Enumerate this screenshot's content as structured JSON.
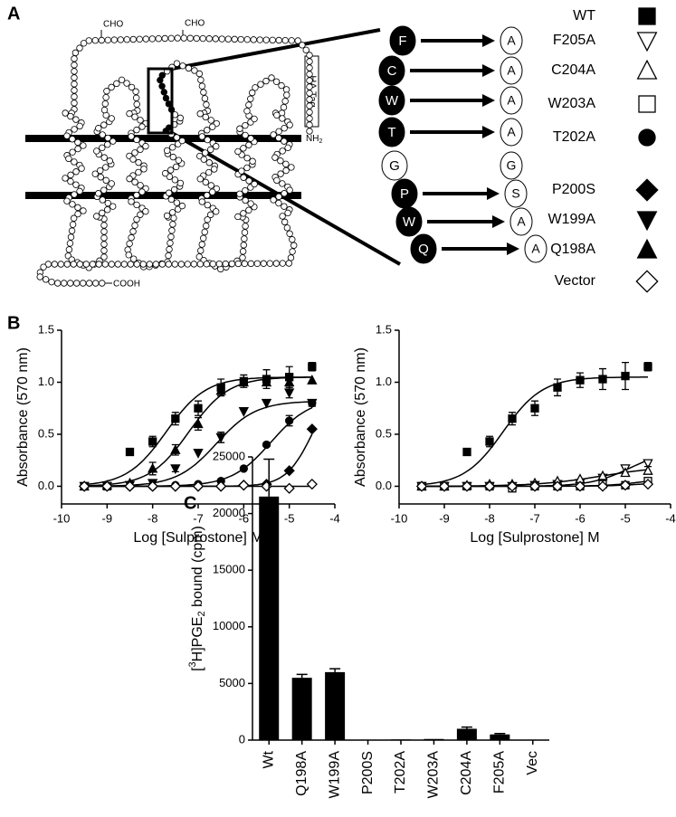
{
  "panel_labels": [
    "A",
    "B",
    "C"
  ],
  "diagram": {
    "glycosylation": [
      "CHO",
      "CHO"
    ],
    "tag": "HA Tag",
    "n_terminus": [
      "NH",
      "2"
    ],
    "c_terminus": "COOH",
    "wild_type": [
      "F",
      "C",
      "W",
      "T",
      "G",
      "P",
      "W",
      "Q"
    ],
    "mutant": [
      "A",
      "A",
      "A",
      "A",
      "G",
      "S",
      "A",
      "A"
    ]
  },
  "chart_data": [
    {
      "type": "line",
      "x_label": "Log [Sulprostone] M",
      "y_label": "Absorbance (570 nm)",
      "x": [
        -9.5,
        -9,
        -8.5,
        -8,
        -7.5,
        -7,
        -6.5,
        -6,
        -5.5,
        -5,
        -4.5
      ],
      "xlim": [
        -10,
        -4
      ],
      "xticks": [
        -10,
        -9,
        -8,
        -7,
        -6,
        -5,
        -4
      ],
      "ylim": [
        -0.17,
        1.5
      ],
      "yticks": [
        {
          "value": 0,
          "label": "0.0"
        },
        0.5,
        {
          "value": 1,
          "label": "1.0"
        },
        1.5
      ],
      "series": [
        {
          "name": "WT",
          "marker": "square",
          "filled": true,
          "color": "#000000",
          "values": [
            0,
            0,
            0.33,
            0.43,
            0.65,
            0.75,
            0.95,
            1.01,
            1.03,
            1.05,
            1.15
          ],
          "errors": [
            0.02,
            0.02,
            null,
            0.05,
            0.06,
            0.07,
            0.08,
            0.06,
            0.09,
            0.1,
            0.04
          ],
          "fit": {
            "bottom": 0,
            "top": 1.05,
            "log_ec50": -7.7,
            "hill": 1
          }
        },
        {
          "name": "Q198A",
          "marker": "triangle-up",
          "filled": true,
          "color": "#000000",
          "values": [
            0,
            0.01,
            0.03,
            0.17,
            0.35,
            0.6,
            0.92,
            1.0,
            1.0,
            1.0,
            1.02
          ],
          "errors": [
            null,
            null,
            null,
            0.06,
            0.05,
            0.06,
            0.05,
            null,
            null,
            null,
            null
          ],
          "fit": {
            "bottom": 0,
            "top": 1.05,
            "log_ec50": -7.2,
            "hill": 1
          }
        },
        {
          "name": "W199A",
          "marker": "triangle-down",
          "filled": true,
          "color": "#000000",
          "values": [
            0,
            0,
            0.01,
            0.03,
            0.17,
            0.32,
            0.47,
            0.72,
            0.8,
            0.9,
            0.8
          ],
          "errors": [
            null,
            null,
            null,
            null,
            0.03,
            null,
            0.05,
            null,
            null,
            0.05,
            0.03
          ],
          "fit": {
            "bottom": 0,
            "top": 0.82,
            "log_ec50": -6.6,
            "hill": 1
          }
        },
        {
          "name": "T202A",
          "marker": "circle",
          "filled": true,
          "color": "#000000",
          "values": [
            0,
            0,
            0,
            0,
            0.01,
            0.02,
            0.05,
            0.17,
            0.4,
            0.63,
            0.8
          ],
          "errors": [
            null,
            null,
            null,
            null,
            null,
            null,
            null,
            null,
            null,
            0.05,
            0.03
          ],
          "fit": {
            "bottom": 0,
            "top": 0.85,
            "log_ec50": -5.4,
            "hill": 1
          }
        },
        {
          "name": "P200S",
          "marker": "diamond",
          "filled": true,
          "color": "#000000",
          "values": [
            0,
            0,
            0,
            0,
            0,
            0,
            0,
            0.01,
            0.02,
            0.15,
            0.55
          ],
          "errors": [
            null,
            null,
            null,
            null,
            null,
            null,
            null,
            null,
            null,
            null,
            null
          ],
          "fit": {
            "bottom": 0,
            "top": 1.0,
            "log_ec50": -4.5,
            "hill": 1.5
          }
        },
        {
          "name": "Vector",
          "marker": "diamond",
          "filled": false,
          "color": "#000000",
          "values": [
            0,
            0,
            0,
            0,
            0,
            0,
            0,
            0.01,
            0,
            -0.02,
            0.02
          ],
          "errors": [
            null,
            null,
            null,
            null,
            null,
            null,
            null,
            null,
            null,
            null,
            null
          ],
          "fit": {
            "bottom": 0,
            "top": 0,
            "log_ec50": -7,
            "hill": 1
          }
        }
      ]
    },
    {
      "type": "line",
      "x_label": "Log [Sulprostone] M",
      "y_label": "Absorbance (570 nm)",
      "x": [
        -9.5,
        -9,
        -8.5,
        -8,
        -7.5,
        -7,
        -6.5,
        -6,
        -5.5,
        -5,
        -4.5
      ],
      "xlim": [
        -10,
        -4
      ],
      "xticks": [
        -10,
        -9,
        -8,
        -7,
        -6,
        -5,
        -4
      ],
      "ylim": [
        -0.17,
        1.5
      ],
      "yticks": [
        {
          "value": 0,
          "label": "0.0"
        },
        0.5,
        {
          "value": 1,
          "label": "1.0"
        },
        1.5
      ],
      "series": [
        {
          "name": "WT",
          "marker": "square",
          "filled": true,
          "color": "#000000",
          "values": [
            0,
            0,
            0.33,
            0.43,
            0.65,
            0.75,
            0.95,
            1.02,
            1.03,
            1.06,
            1.15
          ],
          "errors": [
            0.02,
            0.02,
            null,
            0.05,
            0.06,
            0.07,
            0.08,
            0.07,
            0.1,
            0.13,
            0.04
          ],
          "fit": {
            "bottom": 0,
            "top": 1.05,
            "log_ec50": -7.7,
            "hill": 1
          }
        },
        {
          "name": "F205A",
          "marker": "triangle-down",
          "filled": false,
          "color": "#000000",
          "values": [
            0,
            0,
            0,
            0,
            0,
            0.01,
            0.02,
            0.03,
            0.08,
            0.17,
            0.22
          ],
          "errors": [
            null,
            null,
            null,
            null,
            null,
            null,
            null,
            null,
            null,
            0.03,
            0.03
          ],
          "fit": {
            "bottom": 0,
            "top": 0.35,
            "log_ec50": -4.9,
            "hill": 1
          }
        },
        {
          "name": "C204A",
          "marker": "triangle-up",
          "filled": false,
          "color": "#000000",
          "values": [
            0,
            0,
            0.01,
            0.02,
            0.02,
            0.03,
            0.05,
            0.07,
            0.1,
            0.13,
            0.15
          ],
          "errors": [
            null,
            null,
            null,
            null,
            null,
            null,
            null,
            null,
            null,
            null,
            null
          ],
          "fit": {
            "bottom": 0,
            "top": 0.2,
            "log_ec50": -5.5,
            "hill": 0.6
          }
        },
        {
          "name": "W203A",
          "marker": "square",
          "filled": false,
          "color": "#000000",
          "values": [
            0,
            0,
            0,
            0,
            -0.02,
            0,
            0,
            0,
            0.02,
            0.01,
            0.05
          ],
          "errors": [
            null,
            null,
            null,
            null,
            null,
            null,
            null,
            null,
            null,
            null,
            null
          ],
          "fit": {
            "bottom": 0,
            "top": 0.1,
            "log_ec50": -4.5,
            "hill": 1
          }
        },
        {
          "name": "Vector",
          "marker": "diamond",
          "filled": false,
          "color": "#000000",
          "values": [
            0,
            0,
            0,
            0,
            0,
            0,
            0,
            0,
            0,
            0.01,
            0.02
          ],
          "errors": [
            null,
            null,
            null,
            null,
            null,
            null,
            null,
            null,
            null,
            null,
            null
          ],
          "fit": {
            "bottom": 0,
            "top": 0.05,
            "log_ec50": -4.5,
            "hill": 1
          }
        }
      ]
    },
    {
      "type": "bar",
      "y_label": [
        "[",
        "3",
        "H]PGE",
        "2",
        " bound (cpm)"
      ],
      "categories": [
        "Wt",
        "Q198A",
        "W199A",
        "P200S",
        "T202A",
        "W203A",
        "C204A",
        "F205A",
        "Vec"
      ],
      "values": [
        21500,
        5500,
        6000,
        30,
        60,
        100,
        1000,
        500,
        20
      ],
      "errors": [
        3300,
        300,
        300,
        null,
        null,
        null,
        150,
        80,
        null
      ],
      "color": "#000000",
      "ylim": [
        0,
        25000
      ],
      "yticks": [
        0,
        5000,
        10000,
        15000,
        20000,
        25000
      ]
    }
  ]
}
